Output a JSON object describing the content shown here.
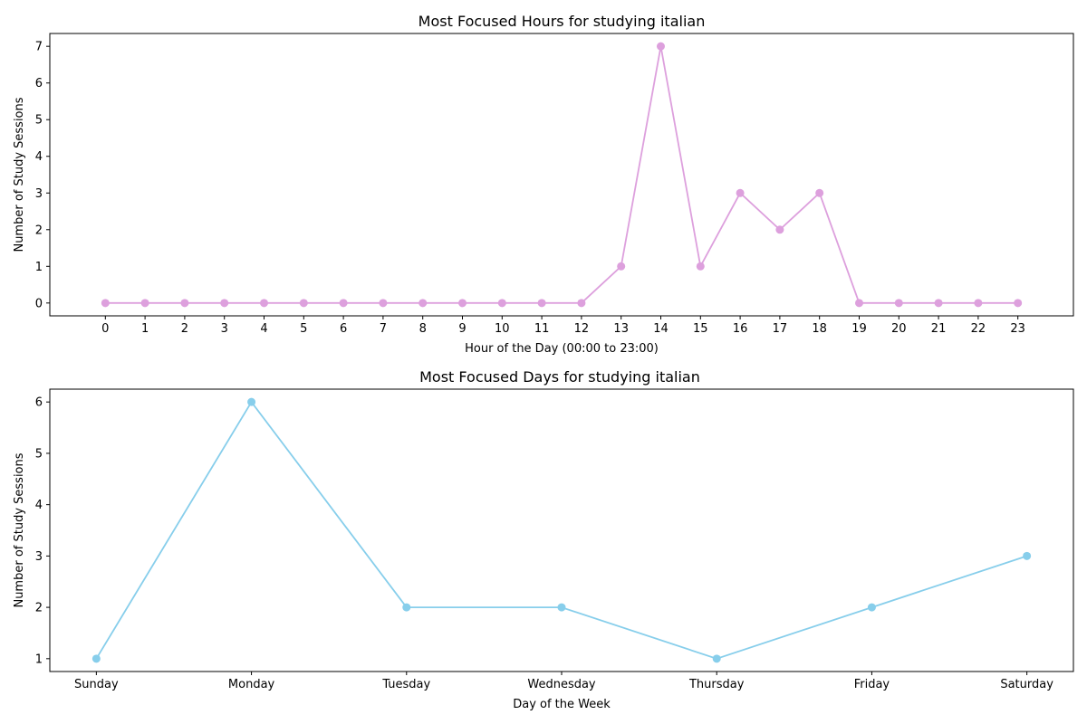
{
  "chart_data": [
    {
      "type": "line",
      "title": "Most Focused Hours for studying italian",
      "xlabel": "Hour of the Day (00:00 to 23:00)",
      "ylabel": "Number of Study Sessions",
      "x": [
        0,
        1,
        2,
        3,
        4,
        5,
        6,
        7,
        8,
        9,
        10,
        11,
        12,
        13,
        14,
        15,
        16,
        17,
        18,
        19,
        20,
        21,
        22,
        23
      ],
      "x_tick_labels": [
        "0",
        "1",
        "2",
        "3",
        "4",
        "5",
        "6",
        "7",
        "8",
        "9",
        "10",
        "11",
        "12",
        "13",
        "14",
        "15",
        "16",
        "17",
        "18",
        "19",
        "20",
        "21",
        "22",
        "23"
      ],
      "values": [
        0,
        0,
        0,
        0,
        0,
        0,
        0,
        0,
        0,
        0,
        0,
        0,
        0,
        1,
        7,
        1,
        3,
        2,
        3,
        0,
        0,
        0,
        0,
        0
      ],
      "xlim": [
        -1.4,
        24.4
      ],
      "ylim": [
        -0.35,
        7.35
      ],
      "y_ticks": [
        0,
        1,
        2,
        3,
        4,
        5,
        6,
        7
      ],
      "color": "#dda0dd",
      "marker": "circle",
      "grid": false
    },
    {
      "type": "line",
      "title": "Most Focused Days for studying italian",
      "xlabel": "Day of the Week",
      "ylabel": "Number of Study Sessions",
      "categories": [
        "Sunday",
        "Monday",
        "Tuesday",
        "Wednesday",
        "Thursday",
        "Friday",
        "Saturday"
      ],
      "values": [
        1,
        6,
        2,
        2,
        1,
        2,
        3
      ],
      "xlim": [
        -0.3,
        6.3
      ],
      "ylim": [
        0.75,
        6.25
      ],
      "y_ticks": [
        1,
        2,
        3,
        4,
        5,
        6
      ],
      "color": "#87ceeb",
      "marker": "circle",
      "grid": false
    }
  ]
}
